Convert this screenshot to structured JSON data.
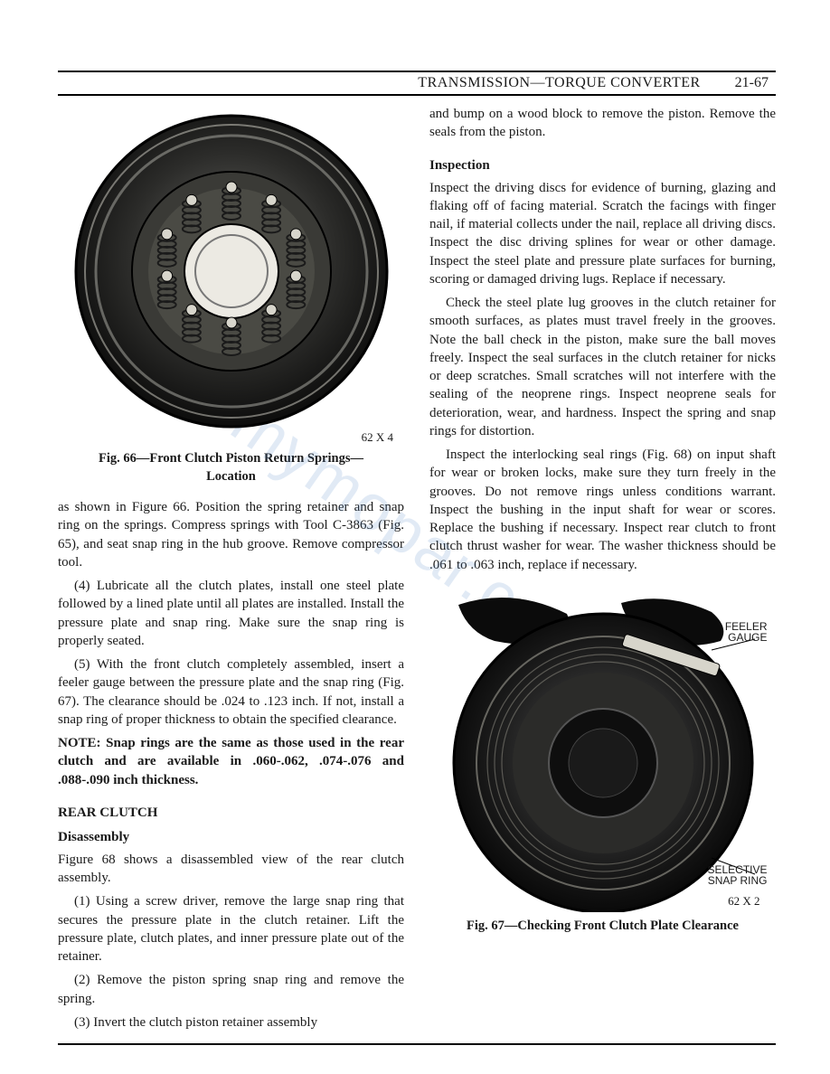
{
  "header": {
    "title": "TRANSMISSION—TORQUE CONVERTER",
    "page_number": "21-67"
  },
  "watermark": "mymopar.com",
  "figure66": {
    "code": "62 X 4",
    "caption_line1": "Fig. 66—Front Clutch Piston Return Springs—",
    "caption_line2": "Location",
    "image": {
      "outer_color": "#0c0c0c",
      "inner_color": "#2b2b2b",
      "bore_color": "#eceae5",
      "spring_count": 10
    }
  },
  "figure67": {
    "code": "62 X 2",
    "caption": "Fig. 67—Checking Front Clutch Plate Clearance",
    "callout_feeler": "FEELER\nGAUGE",
    "callout_snapring": "SELECTIVE\nSNAP RING",
    "image": {
      "outer_color": "#0a0a0a",
      "inner_color": "#222",
      "bore_color": "#111"
    }
  },
  "left": {
    "p1": "as shown in Figure 66. Position the spring retainer and snap ring on the springs. Compress springs with Tool C-3863 (Fig. 65), and seat snap ring in the hub groove. Remove compressor tool.",
    "p2": "(4) Lubricate all the clutch plates, install one steel plate followed by a lined plate until all plates are installed. Install the pressure plate and snap ring. Make sure the snap ring is properly seated.",
    "p3": "(5) With the front clutch completely assembled, insert a feeler gauge between the pressure plate and the snap ring (Fig. 67). The clearance should be .024 to .123 inch. If not, install a snap ring of proper thickness to obtain the specified clearance.",
    "note": "NOTE: Snap rings are the same as those used in the rear clutch and are available in .060-.062, .074-.076 and .088-.090 inch thickness.",
    "section": "REAR CLUTCH",
    "sub": "Disassembly",
    "p4": "Figure 68 shows a disassembled view of the rear clutch assembly.",
    "p5": "(1) Using a screw driver, remove the large snap ring that secures the pressure plate in the clutch retainer. Lift the pressure plate, clutch plates, and inner pressure plate out of the retainer.",
    "p6": "(2) Remove the piston spring snap ring and remove the spring.",
    "p7": "(3) Invert the clutch piston retainer assembly"
  },
  "right": {
    "p1": "and bump on a wood block to remove the piston. Remove the seals from the piston.",
    "sub": "Inspection",
    "p2": "Inspect the driving discs for evidence of burning, glazing and flaking off of facing material. Scratch the facings with finger nail, if material collects under the nail, replace all driving discs. Inspect the disc driving splines for wear or other damage. Inspect the steel plate and pressure plate surfaces for burning, scoring or damaged driving lugs. Replace if necessary.",
    "p3": "Check the steel plate lug grooves in the clutch retainer for smooth surfaces, as plates must travel freely in the grooves. Note the ball check in the piston, make sure the ball moves freely. Inspect the seal surfaces in the clutch retainer for nicks or deep scratches. Small scratches will not interfere with the sealing of the neoprene rings. Inspect neoprene seals for deterioration, wear, and hardness. Inspect the spring and snap rings for distortion.",
    "p4": "Inspect the interlocking seal rings (Fig. 68) on input shaft for wear or broken locks, make sure they turn freely in the grooves. Do not remove rings unless conditions warrant. Inspect the bushing in the input shaft for wear or scores. Replace the bushing if necessary. Inspect rear clutch to front clutch thrust washer for wear. The washer thickness should be .061 to .063 inch, replace if necessary."
  }
}
